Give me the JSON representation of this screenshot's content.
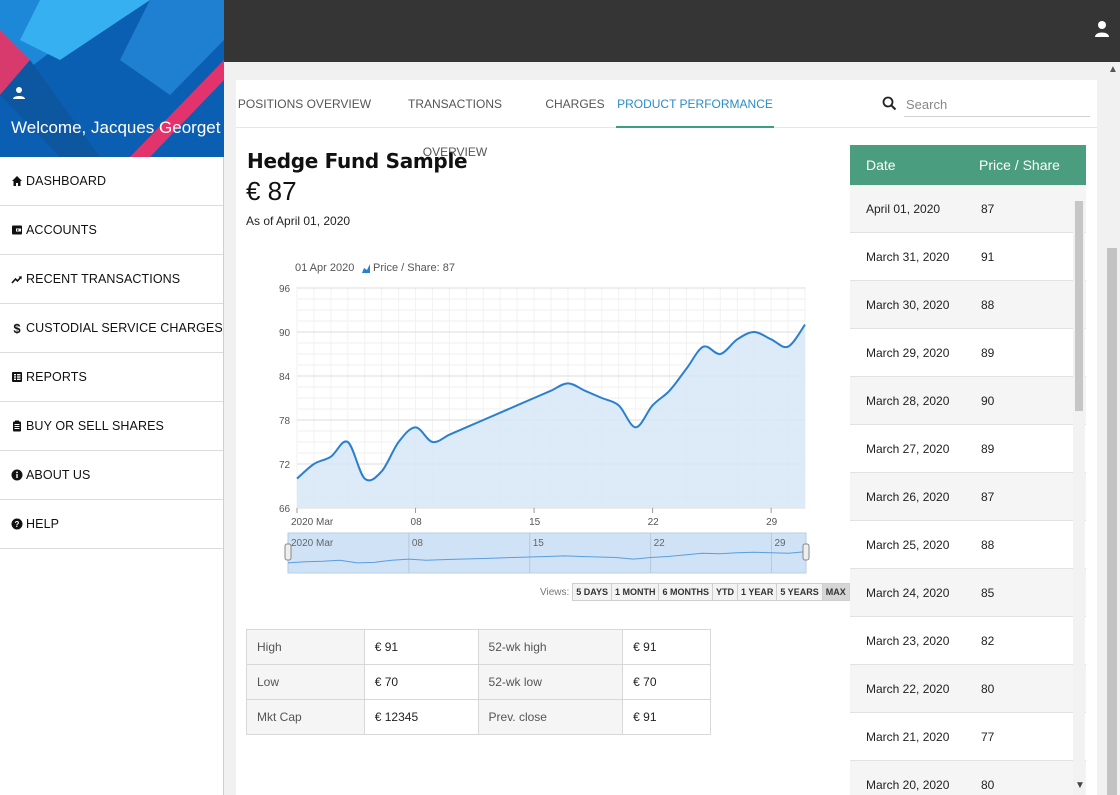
{
  "user": {
    "welcome": "Welcome, Jacques Georget"
  },
  "nav": [
    {
      "label": "DASHBOARD",
      "icon": "home-icon"
    },
    {
      "label": "ACCOUNTS",
      "icon": "wallet-icon"
    },
    {
      "label": "RECENT TRANSACTIONS",
      "icon": "trend-up-icon"
    },
    {
      "label": "CUSTODIAL SERVICE CHARGES",
      "icon": "dollar-icon"
    },
    {
      "label": "REPORTS",
      "icon": "report-icon"
    },
    {
      "label": "BUY OR SELL SHARES",
      "icon": "clipboard-icon"
    },
    {
      "label": "ABOUT US",
      "icon": "info-icon"
    },
    {
      "label": "HELP",
      "icon": "help-icon"
    }
  ],
  "tabs": [
    {
      "label": "POSITIONS OVERVIEW",
      "active": false
    },
    {
      "label": "TRANSACTIONS OVERVIEW",
      "active": false
    },
    {
      "label": "CHARGES",
      "active": false
    },
    {
      "label": "PRODUCT PERFORMANCE",
      "active": true
    }
  ],
  "search": {
    "placeholder": "Search"
  },
  "fund": {
    "name": "Hedge Fund Sample",
    "price": "€ 87",
    "as_of": "As of April 01, 2020"
  },
  "chart_data": {
    "type": "area",
    "tooltip": {
      "date": "01 Apr 2020",
      "series_label": "Price / Share: 87"
    },
    "ylim": [
      66,
      96
    ],
    "yticks": [
      66,
      72,
      78,
      84,
      90,
      96
    ],
    "xlim": [
      1,
      31
    ],
    "xticks": [
      {
        "label": "2020 Mar",
        "day": 1
      },
      {
        "label": "08",
        "day": 8
      },
      {
        "label": "15",
        "day": 15
      },
      {
        "label": "22",
        "day": 22
      },
      {
        "label": "29",
        "day": 29
      }
    ],
    "series": [
      {
        "name": "Price / Share",
        "x": [
          1,
          2,
          3,
          4,
          5,
          6,
          7,
          8,
          9,
          10,
          11,
          12,
          13,
          14,
          15,
          16,
          17,
          18,
          19,
          20,
          21,
          22,
          23,
          24,
          25,
          26,
          27,
          28,
          29,
          30,
          31
        ],
        "values": [
          70,
          72,
          73,
          75,
          70,
          71,
          75,
          77,
          75,
          76,
          77,
          78,
          79,
          80,
          81,
          82,
          83,
          82,
          81,
          80,
          77,
          80,
          82,
          85,
          88,
          87,
          89,
          90,
          89,
          88,
          91
        ]
      }
    ],
    "grid": true,
    "navigator": true
  },
  "views": {
    "label": "Views:",
    "buttons": [
      "5 DAYS",
      "1 MONTH",
      "6 MONTHS",
      "YTD",
      "1 YEAR",
      "5 YEARS",
      "MAX"
    ],
    "active": "MAX"
  },
  "stats": [
    [
      "High",
      "€ 91",
      "52-wk high",
      "€ 91"
    ],
    [
      "Low",
      "€ 70",
      "52-wk low",
      "€ 70"
    ],
    [
      "Mkt Cap",
      "€ 12345",
      "Prev. close",
      "€ 91"
    ]
  ],
  "price_table": {
    "headers": [
      "Date",
      "Price / Share"
    ],
    "rows": [
      [
        "April 01, 2020",
        "87"
      ],
      [
        "March 31, 2020",
        "91"
      ],
      [
        "March 30, 2020",
        "88"
      ],
      [
        "March 29, 2020",
        "89"
      ],
      [
        "March 28, 2020",
        "90"
      ],
      [
        "March 27, 2020",
        "89"
      ],
      [
        "March 26, 2020",
        "87"
      ],
      [
        "March 25, 2020",
        "88"
      ],
      [
        "March 24, 2020",
        "85"
      ],
      [
        "March 23, 2020",
        "82"
      ],
      [
        "March 22, 2020",
        "80"
      ],
      [
        "March 21, 2020",
        "77"
      ],
      [
        "March 20, 2020",
        "80"
      ]
    ]
  },
  "colors": {
    "topbar": "#353535",
    "accent_green": "#4a9d7f",
    "tab_active_text": "#2b8bc9",
    "line": "#2a7fd0"
  }
}
